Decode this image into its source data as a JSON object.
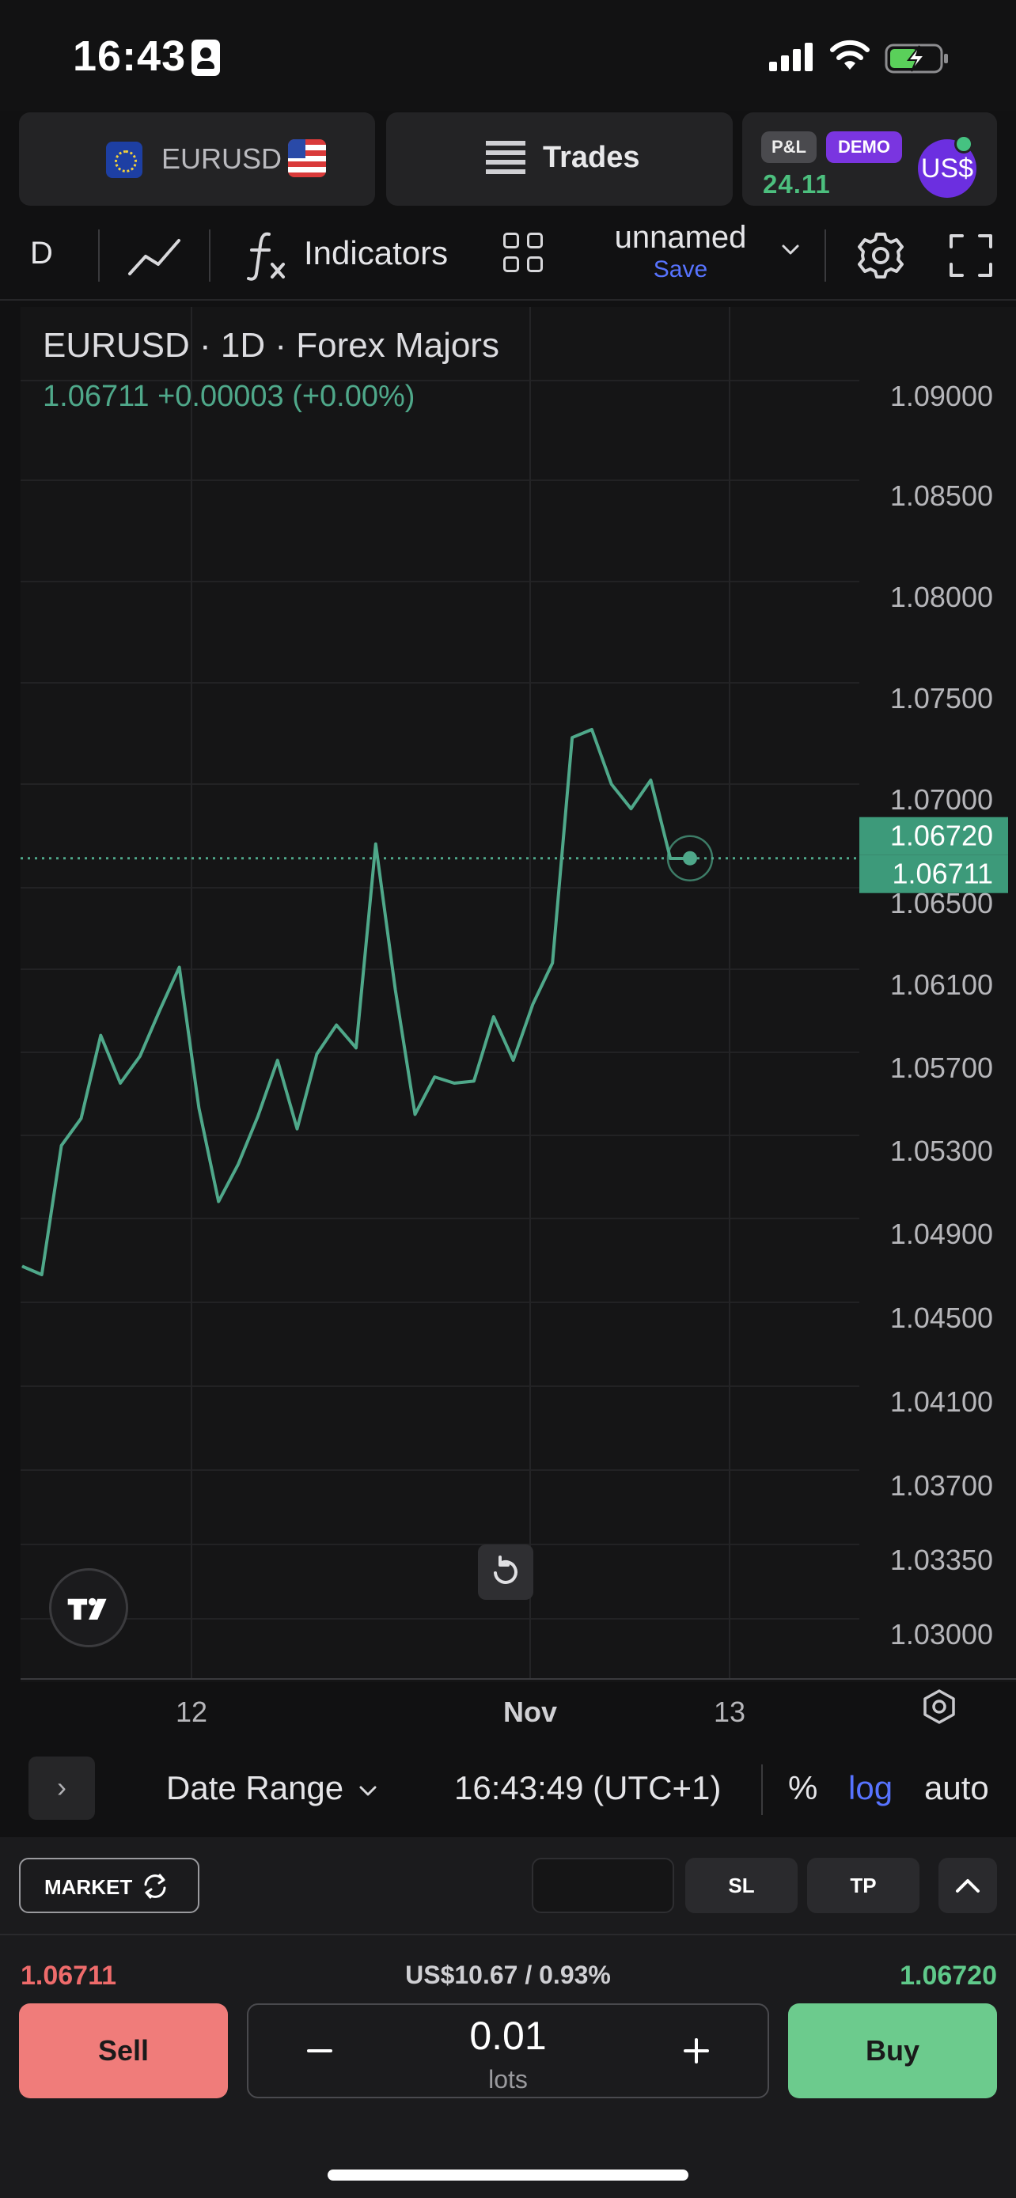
{
  "status_bar": {
    "time": "16:43"
  },
  "header": {
    "symbol": "EURUSD",
    "trades_label": "Trades",
    "pnl_label": "P&L",
    "demo_label": "DEMO",
    "pnl_value": "24.11",
    "account_currency": "US$"
  },
  "toolbar": {
    "interval": "D",
    "indicators_label": "Indicators",
    "layout_name": "unnamed",
    "save_label": "Save"
  },
  "chart": {
    "title": "EURUSD · 1D · Forex Majors",
    "quote": "1.06711  +0.00003 (+0.00%)",
    "bid_tag": "1.06720",
    "ask_tag": "1.06711",
    "colors": {
      "line": "#4fa88a",
      "tag_bg": "#3d9a7a"
    }
  },
  "chart_data": {
    "type": "line",
    "title": "EURUSD · 1D · Forex Majors",
    "y_tick_labels": [
      "1.09000",
      "1.08500",
      "1.08000",
      "1.07500",
      "1.07000",
      "1.06500",
      "1.06100",
      "1.05700",
      "1.05300",
      "1.04900",
      "1.04500",
      "1.04100",
      "1.03700",
      "1.03350",
      "1.03000"
    ],
    "x_tick_labels": [
      "12",
      "Nov",
      "13"
    ],
    "y_scale": "log",
    "series": [
      {
        "values": [
          1.0474,
          1.047,
          1.0532,
          1.0545,
          1.0585,
          1.0562,
          1.0575,
          1.0597,
          1.0618,
          1.055,
          1.0505,
          1.0523,
          1.0546,
          1.0573,
          1.054,
          1.0576,
          1.059,
          1.0579,
          1.0678,
          1.0607,
          1.0547,
          1.0565,
          1.0562,
          1.0563,
          1.0594,
          1.0573,
          1.06,
          1.062,
          1.073,
          1.0734,
          1.0707,
          1.0695,
          1.0709,
          1.0671,
          1.0671
        ]
      }
    ],
    "last_price": 1.06711,
    "grid": true
  },
  "controls": {
    "expand_label": "›",
    "date_range_label": "Date Range",
    "clock": "16:43:49 (UTC+1)",
    "percent_label": "%",
    "log_label": "log",
    "auto_label": "auto"
  },
  "order": {
    "market_label": "MARKET",
    "sl_label": "SL",
    "tp_label": "TP",
    "sell_price": "1.06711",
    "spread": "US$10.67 / 0.93%",
    "buy_price": "1.06720",
    "sell_label": "Sell",
    "buy_label": "Buy",
    "lots_value": "0.01",
    "lots_unit": "lots"
  }
}
